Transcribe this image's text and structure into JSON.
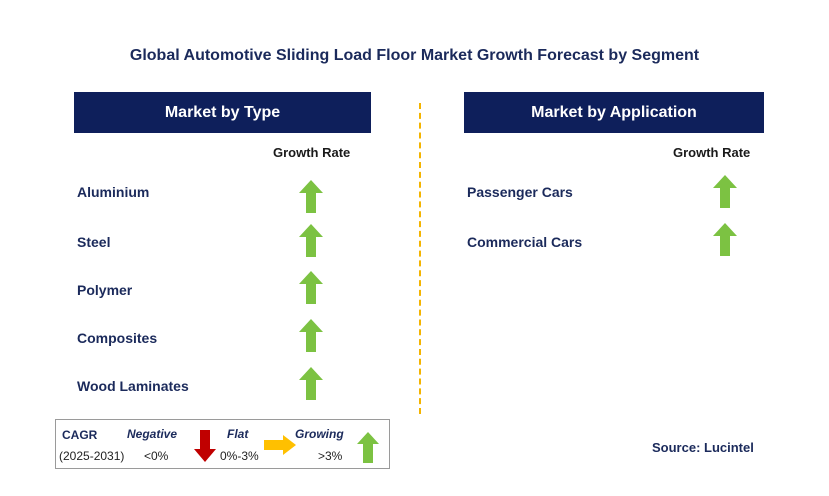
{
  "chart_data": {
    "type": "table",
    "title": "Global Automotive Sliding Load Floor Market Growth Forecast by Segment",
    "panels": [
      {
        "header": "Market by Type",
        "column_label": "Growth Rate",
        "rows": [
          {
            "label": "Aluminium",
            "trend": "growing"
          },
          {
            "label": "Steel",
            "trend": "growing"
          },
          {
            "label": "Polymer",
            "trend": "growing"
          },
          {
            "label": "Composites",
            "trend": "growing"
          },
          {
            "label": "Wood Laminates",
            "trend": "growing"
          }
        ]
      },
      {
        "header": "Market by Application",
        "column_label": "Growth Rate",
        "rows": [
          {
            "label": "Passenger Cars",
            "trend": "growing"
          },
          {
            "label": "Commercial Cars",
            "trend": "growing"
          }
        ]
      }
    ],
    "legend": {
      "cagr_label": "CAGR",
      "period": "(2025-2031)",
      "items": [
        {
          "name": "Negative",
          "range": "<0%",
          "icon": "down-arrow-icon",
          "color": "#c00000"
        },
        {
          "name": "Flat",
          "range": "0%-3%",
          "icon": "right-arrow-icon",
          "color": "#ffc000"
        },
        {
          "name": "Growing",
          "range": ">3%",
          "icon": "up-arrow-icon",
          "color": "#7cc242"
        }
      ]
    },
    "source": "Source: Lucintel"
  },
  "colors": {
    "header_bg": "#0e1f5b",
    "growing": "#7cc242",
    "flat": "#ffc000",
    "negative": "#c00000",
    "divider": "#f4b400"
  }
}
